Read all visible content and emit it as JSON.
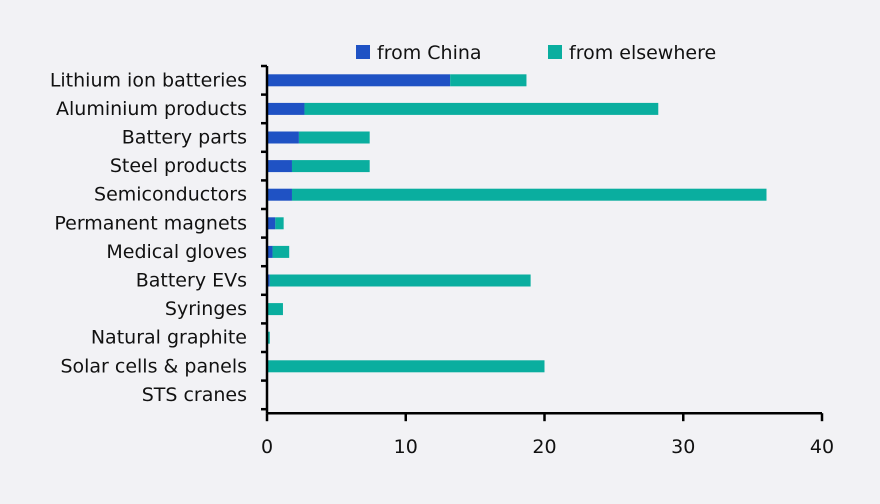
{
  "chart_data": {
    "type": "bar",
    "orientation": "horizontal",
    "stacked": true,
    "title": "",
    "xlabel": "",
    "ylabel": "",
    "xlim": [
      0,
      40
    ],
    "xticks": [
      0,
      10,
      20,
      30,
      40
    ],
    "grid": false,
    "legend_position": "top",
    "categories": [
      "Lithium ion batteries",
      "Aluminium products",
      "Battery parts",
      "Steel products",
      "Semiconductors",
      "Permanent magnets",
      "Medical gloves",
      "Battery EVs",
      "Syringes",
      "Natural graphite",
      "Solar cells & panels",
      "STS cranes"
    ],
    "series": [
      {
        "name": "from China",
        "color": "#1f52c4",
        "values": [
          13.2,
          2.7,
          2.3,
          1.8,
          1.8,
          0.6,
          0.4,
          0.2,
          0.0,
          0.0,
          0.0,
          0.0
        ]
      },
      {
        "name": "from elsewhere",
        "color": "#0aae9f",
        "values": [
          5.5,
          25.5,
          5.1,
          5.6,
          34.2,
          0.6,
          1.2,
          18.8,
          1.15,
          0.2,
          20.0,
          0.0
        ]
      }
    ]
  }
}
